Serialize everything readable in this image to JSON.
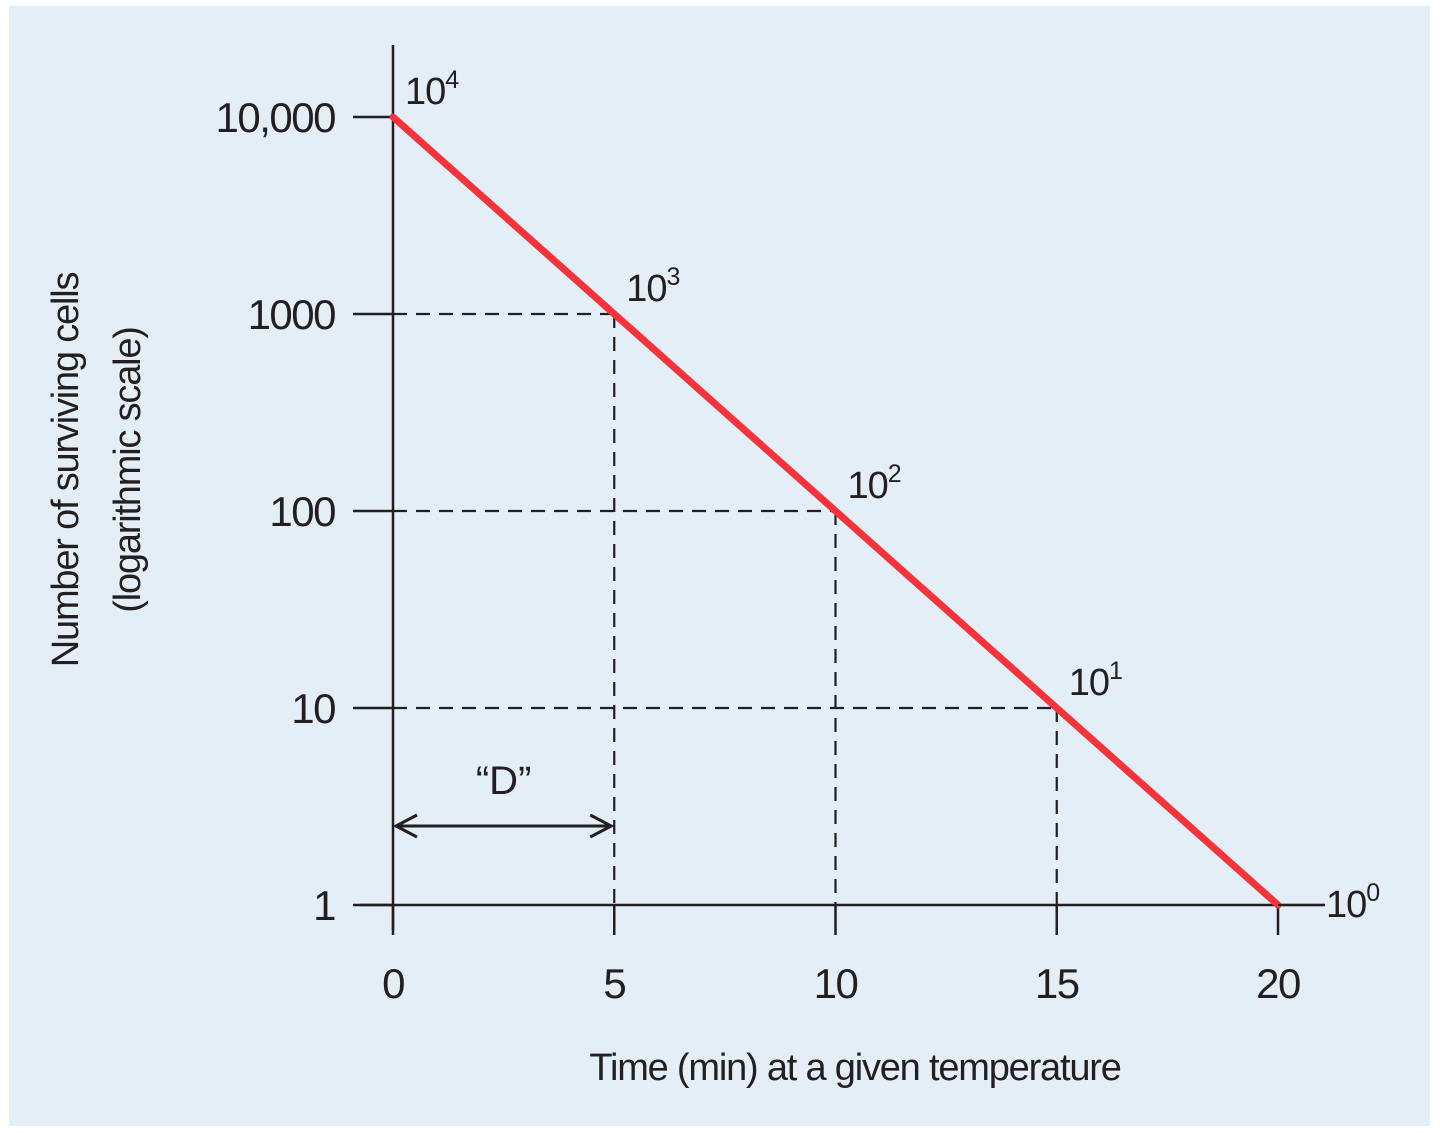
{
  "chart_data": {
    "type": "line",
    "xlabel": "Time (min) at a given temperature",
    "ylabel_line1": "Number of surviving cells",
    "ylabel_line2": "(logarithmic scale)",
    "x_ticks": [
      "0",
      "5",
      "10",
      "15",
      "20"
    ],
    "x_tick_values": [
      0,
      5,
      10,
      15,
      20
    ],
    "y_scale": "log",
    "y_ticks": [
      "10,000",
      "1000",
      "100",
      "10",
      "1"
    ],
    "y_tick_values": [
      10000,
      1000,
      100,
      10,
      1
    ],
    "xlim": [
      0,
      20
    ],
    "ylim": [
      1,
      10000
    ],
    "series": [
      {
        "x": [
          0,
          5,
          10,
          15,
          20
        ],
        "y": [
          10000,
          1000,
          100,
          10,
          1
        ],
        "color": "#f4333a"
      }
    ],
    "point_labels": [
      {
        "base": "10",
        "exp": "4",
        "x": 0,
        "y": 10000
      },
      {
        "base": "10",
        "exp": "3",
        "x": 5,
        "y": 1000
      },
      {
        "base": "10",
        "exp": "2",
        "x": 10,
        "y": 100
      },
      {
        "base": "10",
        "exp": "1",
        "x": 15,
        "y": 10
      },
      {
        "base": "10",
        "exp": "0",
        "x": 20,
        "y": 1
      }
    ],
    "annotation": {
      "text": "“D”",
      "x_from": 0,
      "x_to": 5
    },
    "background_color": "#e3eef7",
    "grid": "dashed guide lines from axes to labeled points"
  }
}
